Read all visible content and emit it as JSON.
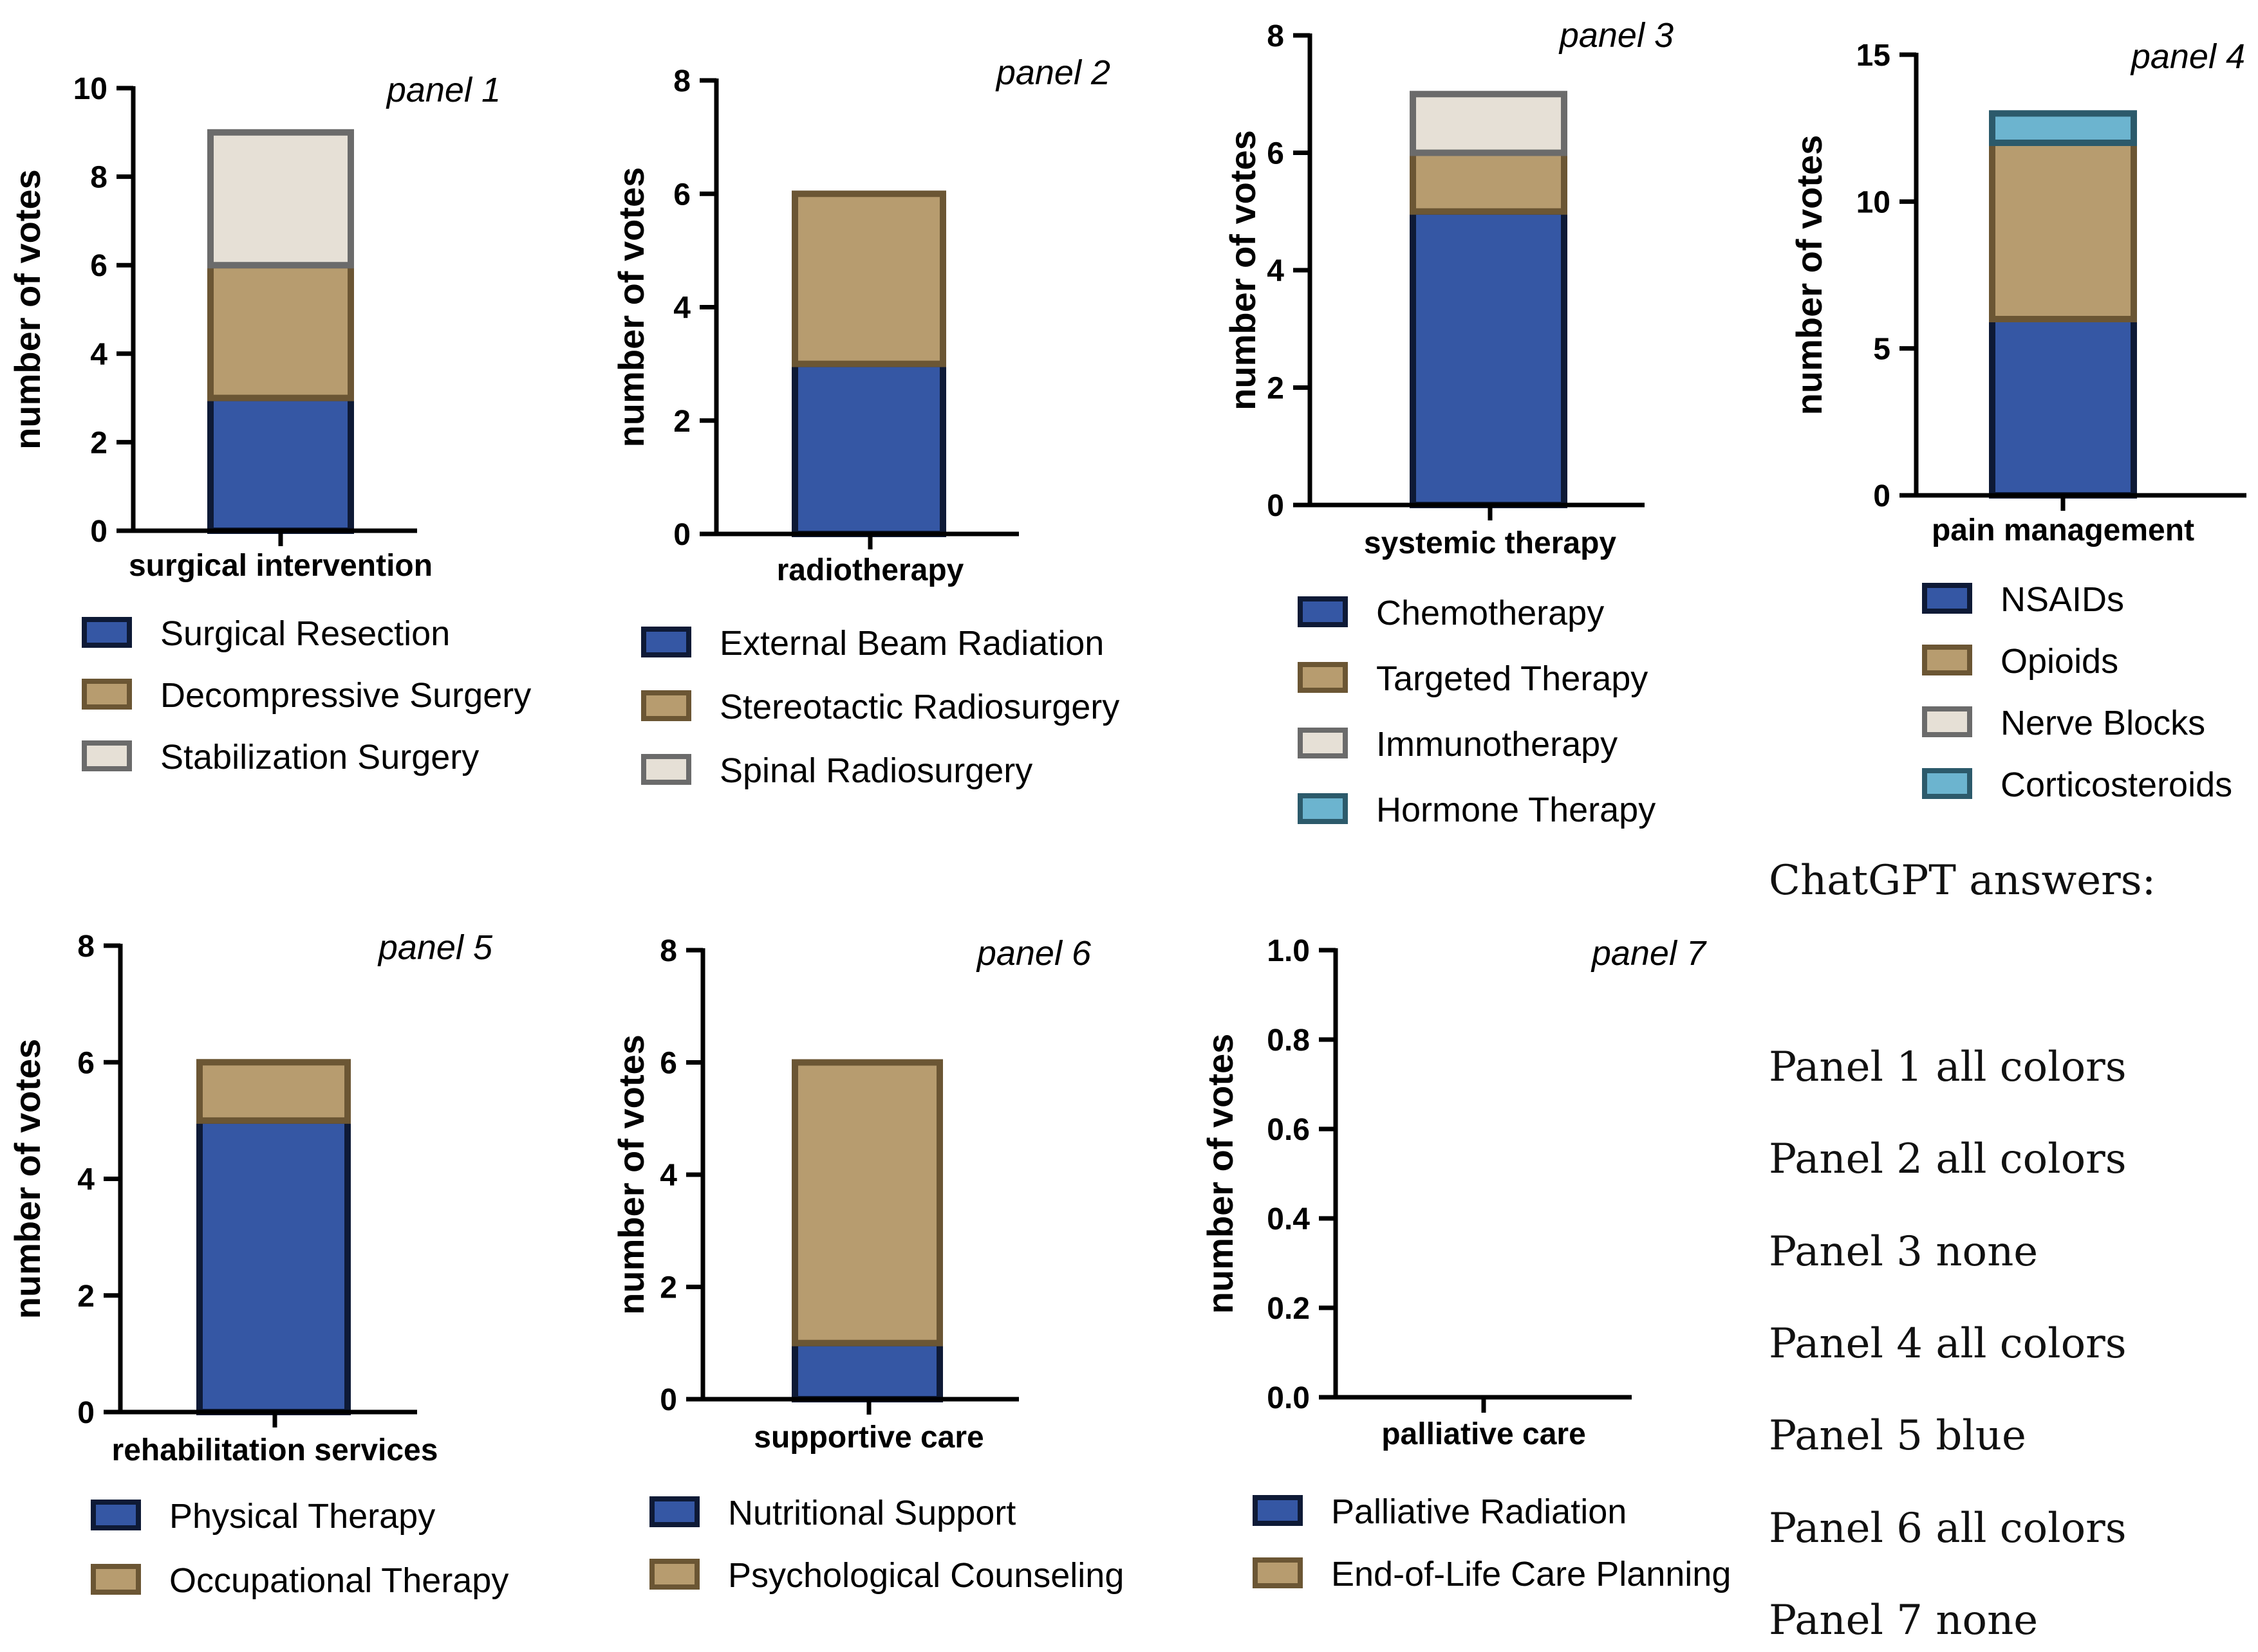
{
  "colors": {
    "blue": {
      "fill": "#3557a4",
      "stroke": "#0e1a36"
    },
    "tan": {
      "fill": "#b79c6f",
      "stroke": "#6b5634"
    },
    "light": {
      "fill": "#e6e0d6",
      "stroke": "#6b6b6b"
    },
    "teal": {
      "fill": "#6cb4cf",
      "stroke": "#2c5a6b"
    }
  },
  "chart_data": [
    {
      "type": "bar",
      "stacked": true,
      "panel": "panel 1",
      "category": "surgical intervention",
      "ylabel": "number of votes",
      "ylim": [
        0,
        10
      ],
      "ticks": [
        "0",
        "2",
        "4",
        "6",
        "8",
        "10"
      ],
      "series": [
        {
          "name": "Surgical Resection",
          "value": 3,
          "color": "blue"
        },
        {
          "name": "Decompressive Surgery",
          "value": 3,
          "color": "tan"
        },
        {
          "name": "Stabilization Surgery",
          "value": 3,
          "color": "light"
        }
      ]
    },
    {
      "type": "bar",
      "stacked": true,
      "panel": "panel 2",
      "category": "radiotherapy",
      "ylabel": "number of votes",
      "ylim": [
        0,
        8
      ],
      "ticks": [
        "0",
        "2",
        "4",
        "6",
        "8"
      ],
      "series": [
        {
          "name": "External Beam Radiation",
          "value": 3,
          "color": "blue"
        },
        {
          "name": "Stereotactic Radiosurgery",
          "value": 3,
          "color": "tan"
        },
        {
          "name": "Spinal Radiosurgery",
          "value": 0,
          "color": "light"
        }
      ]
    },
    {
      "type": "bar",
      "stacked": true,
      "panel": "panel 3",
      "category": "systemic therapy",
      "ylabel": "number of votes",
      "ylim": [
        0,
        8
      ],
      "ticks": [
        "0",
        "2",
        "4",
        "6",
        "8"
      ],
      "series": [
        {
          "name": "Chemotherapy",
          "value": 5,
          "color": "blue"
        },
        {
          "name": "Targeted Therapy",
          "value": 1,
          "color": "tan"
        },
        {
          "name": "Immunotherapy",
          "value": 1,
          "color": "light"
        },
        {
          "name": "Hormone Therapy",
          "value": 0,
          "color": "teal"
        }
      ]
    },
    {
      "type": "bar",
      "stacked": true,
      "panel": "panel 4",
      "category": "pain management",
      "ylabel": "number of votes",
      "ylim": [
        0,
        15
      ],
      "ticks": [
        "0",
        "5",
        "10",
        "15"
      ],
      "series": [
        {
          "name": "NSAIDs",
          "value": 6,
          "color": "blue"
        },
        {
          "name": "Opioids",
          "value": 6,
          "color": "tan"
        },
        {
          "name": "Nerve Blocks",
          "value": 0,
          "color": "light"
        },
        {
          "name": "Corticosteroids",
          "value": 1,
          "color": "teal"
        }
      ]
    },
    {
      "type": "bar",
      "stacked": true,
      "panel": "panel 5",
      "category": "rehabilitation services",
      "ylabel": "number of votes",
      "ylim": [
        0,
        8
      ],
      "ticks": [
        "0",
        "2",
        "4",
        "6",
        "8"
      ],
      "series": [
        {
          "name": "Physical Therapy",
          "value": 5,
          "color": "blue"
        },
        {
          "name": "Occupational Therapy",
          "value": 1,
          "color": "tan"
        }
      ]
    },
    {
      "type": "bar",
      "stacked": true,
      "panel": "panel 6",
      "category": "supportive care",
      "ylabel": "number of votes",
      "ylim": [
        0,
        8
      ],
      "ticks": [
        "0",
        "2",
        "4",
        "6",
        "8"
      ],
      "series": [
        {
          "name": "Nutritional Support",
          "value": 1,
          "color": "blue"
        },
        {
          "name": "Psychological Counseling",
          "value": 5,
          "color": "tan"
        }
      ]
    },
    {
      "type": "bar",
      "stacked": true,
      "panel": "panel 7",
      "category": "palliative care",
      "ylabel": "number of votes",
      "ylim": [
        0,
        1
      ],
      "ticks": [
        "0.0",
        "0.2",
        "0.4",
        "0.6",
        "0.8",
        "1.0"
      ],
      "series": [
        {
          "name": "Palliative Radiation",
          "value": 0,
          "color": "blue"
        },
        {
          "name": "End-of-Life Care Planning",
          "value": 0,
          "color": "tan"
        }
      ]
    }
  ],
  "notes": {
    "title": "ChatGPT answers:",
    "lines": [
      "Panel 1 all colors",
      "Panel 2 all colors",
      "Panel 3 none",
      "Panel 4 all colors",
      "Panel 5 blue",
      "Panel 6 all colors",
      "Panel 7 none"
    ]
  }
}
